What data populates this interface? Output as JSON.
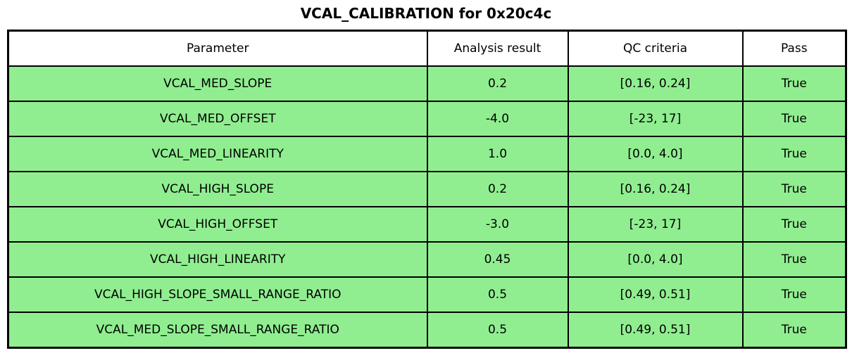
{
  "chart_data": {
    "type": "table",
    "title": "VCAL_CALIBRATION for 0x20c4c",
    "columns": [
      "Parameter",
      "Analysis result",
      "QC criteria",
      "Pass"
    ],
    "rows": [
      [
        "VCAL_MED_SLOPE",
        "0.2",
        "[0.16, 0.24]",
        "True"
      ],
      [
        "VCAL_MED_OFFSET",
        "-4.0",
        "[-23, 17]",
        "True"
      ],
      [
        "VCAL_MED_LINEARITY",
        "1.0",
        "[0.0, 4.0]",
        "True"
      ],
      [
        "VCAL_HIGH_SLOPE",
        "0.2",
        "[0.16, 0.24]",
        "True"
      ],
      [
        "VCAL_HIGH_OFFSET",
        "-3.0",
        "[-23, 17]",
        "True"
      ],
      [
        "VCAL_HIGH_LINEARITY",
        "0.45",
        "[0.0, 4.0]",
        "True"
      ],
      [
        "VCAL_HIGH_SLOPE_SMALL_RANGE_RATIO",
        "0.5",
        "[0.49, 0.51]",
        "True"
      ],
      [
        "VCAL_MED_SLOPE_SMALL_RANGE_RATIO",
        "0.5",
        "[0.49, 0.51]",
        "True"
      ]
    ],
    "layout": {
      "grid": "full-borders",
      "header_position": "top",
      "all_rows_pass": true
    }
  },
  "colors": {
    "pass_row_bg": "#90EE90",
    "header_bg": "#ffffff",
    "border": "#000000",
    "background": "#ffffff",
    "text": "#000000"
  }
}
